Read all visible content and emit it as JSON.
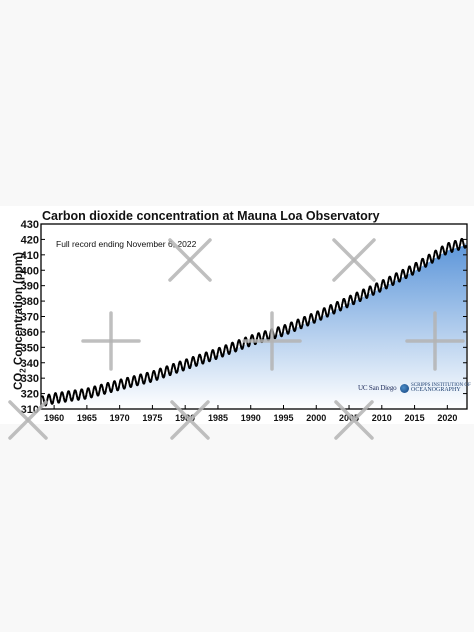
{
  "page": {
    "background": "#f8f8f8",
    "watermark_color": "#b4b4b4"
  },
  "chart_data": {
    "type": "line",
    "title": "Carbon dioxide concentration at Mauna Loa Observatory",
    "subtitle": "Full record ending November 6, 2022",
    "ylabel": "CO2 Concentration (ppm)",
    "ylabel_parts": {
      "main": "CO",
      "sub": "2",
      "rest": " Concentration (ppm)"
    },
    "xlabel": "",
    "xlim": [
      1958,
      2023
    ],
    "ylim": [
      310,
      430
    ],
    "yticks": [
      310,
      320,
      330,
      340,
      350,
      360,
      370,
      380,
      390,
      400,
      410,
      420,
      430
    ],
    "xticks": [
      1960,
      1965,
      1970,
      1975,
      1980,
      1985,
      1990,
      1995,
      2000,
      2005,
      2010,
      2015,
      2020
    ],
    "series": [
      {
        "trend_points": [
          [
            1958.2,
            315.0
          ],
          [
            1960,
            316.9
          ],
          [
            1965,
            320.0
          ],
          [
            1970,
            325.7
          ],
          [
            1975,
            331.1
          ],
          [
            1980,
            338.7
          ],
          [
            1985,
            346.1
          ],
          [
            1990,
            354.4
          ],
          [
            1995,
            360.8
          ],
          [
            2000,
            369.7
          ],
          [
            2005,
            379.8
          ],
          [
            2010,
            389.9
          ],
          [
            2015,
            401.0
          ],
          [
            2020,
            414.2
          ],
          [
            2022.85,
            418.0
          ]
        ],
        "seasonal_amplitude_ppm": 3.2,
        "line_color": "#000000",
        "marker_color": "#000000"
      }
    ],
    "fill_colors": {
      "top": "#5b95d9",
      "bottom": "#ffffff"
    },
    "grid": false,
    "legend": "none"
  },
  "logos": {
    "ucsd": "UC San Diego",
    "scripps_line1": "SCRIPPS INSTITUTION OF",
    "scripps_line2": "OCEANOGRAPHY"
  }
}
